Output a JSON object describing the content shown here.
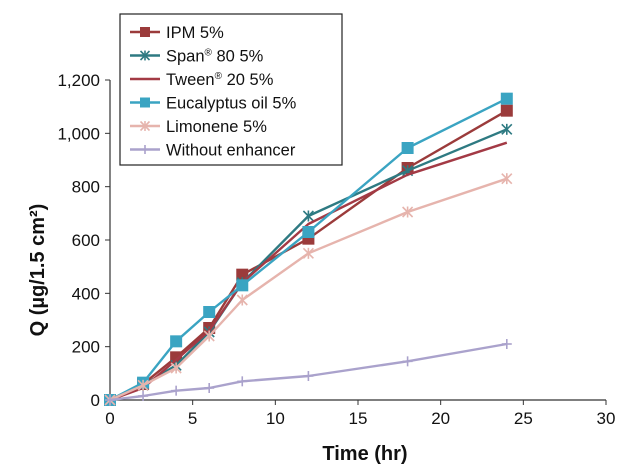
{
  "chart_data": {
    "type": "line",
    "xlabel": "Time (hr)",
    "ylabel": "Q (µg/1.5 cm²)",
    "xlim": [
      0,
      30
    ],
    "ylim": [
      0,
      1200
    ],
    "x_ticks": [
      "0",
      "5",
      "10",
      "15",
      "20",
      "25",
      "30"
    ],
    "y_ticks": [
      "0",
      "200",
      "400",
      "600",
      "800",
      "1,000",
      "1,200"
    ],
    "grid": false,
    "legend_position": "top-left",
    "x": [
      0,
      2,
      4,
      6,
      8,
      12,
      18,
      24
    ],
    "series": [
      {
        "name": "IPM 5%",
        "name_parts": [
          "IPM 5%"
        ],
        "color": "#9b3b3b",
        "marker": "square",
        "values": [
          0,
          60,
          160,
          270,
          470,
          605,
          870,
          1085
        ]
      },
      {
        "name": "Span® 80 5%",
        "name_parts": [
          "Span",
          "®",
          " 80 5%"
        ],
        "color": "#2e7a82",
        "marker": "asterisk",
        "values": [
          0,
          55,
          130,
          255,
          440,
          690,
          860,
          1015
        ]
      },
      {
        "name": "Tween® 20 5%",
        "name_parts": [
          "Tween",
          "®",
          " 20 5%"
        ],
        "color": "#a33a45",
        "marker": "none",
        "values": [
          0,
          45,
          150,
          260,
          440,
          660,
          845,
          965
        ]
      },
      {
        "name": "Eucalyptus oil 5%",
        "name_parts": [
          "Eucalyptus oil 5%"
        ],
        "color": "#3aa4c2",
        "marker": "square",
        "values": [
          0,
          65,
          220,
          330,
          430,
          630,
          945,
          1130
        ]
      },
      {
        "name": "Limonene 5%",
        "name_parts": [
          "Limonene 5%"
        ],
        "color": "#e6b4ad",
        "marker": "asterisk",
        "values": [
          0,
          55,
          120,
          240,
          375,
          550,
          705,
          830
        ]
      },
      {
        "name": "Without enhancer",
        "name_parts": [
          "Without enhancer"
        ],
        "color": "#aaa2cc",
        "marker": "plus",
        "values": [
          0,
          15,
          35,
          45,
          70,
          90,
          145,
          210
        ]
      }
    ]
  }
}
